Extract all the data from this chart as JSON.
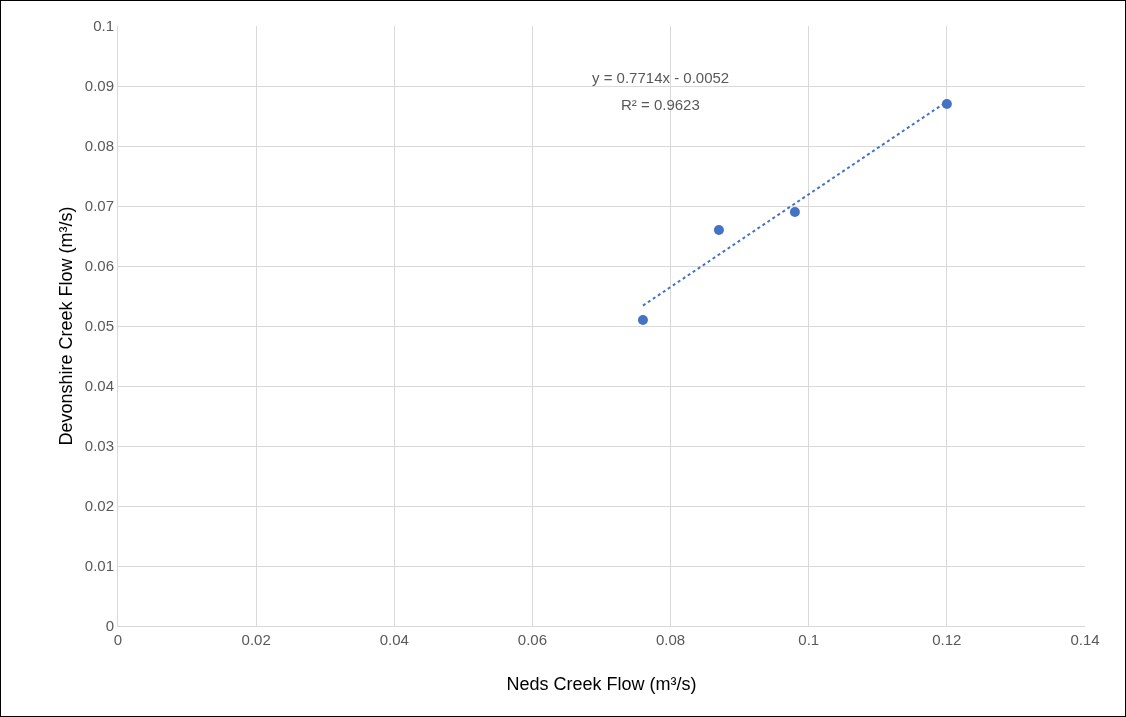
{
  "chart_data": {
    "type": "scatter",
    "xlabel": "Neds Creek Flow (m³/s)",
    "ylabel": "Devonshire Creek Flow (m³/s)",
    "annotations": [
      "y = 0.7714x - 0.0052",
      "R² = 0.9623"
    ],
    "marker": "circle",
    "grid": true,
    "series": [
      {
        "color": "#4472c4",
        "x": [
          0.076,
          0.087,
          0.098,
          0.12
        ],
        "values": [
          0.051,
          0.066,
          0.069,
          0.087
        ]
      },
      {
        "type": "line",
        "color": "#4472c4",
        "x": [
          0.076,
          0.12
        ],
        "values": [
          0.0534,
          0.0874
        ],
        "marker": "none",
        "line_style": "dotted"
      }
    ],
    "xlim": [
      0,
      0.14
    ],
    "xticks": [
      0,
      0.02,
      0.04,
      0.06,
      0.08,
      0.1,
      0.12,
      0.14
    ],
    "ylim": [
      0,
      0.1
    ],
    "yticks": [
      0,
      0.01,
      0.02,
      0.03,
      0.04,
      0.05,
      0.06,
      0.07,
      0.08,
      0.09,
      0.1
    ]
  }
}
